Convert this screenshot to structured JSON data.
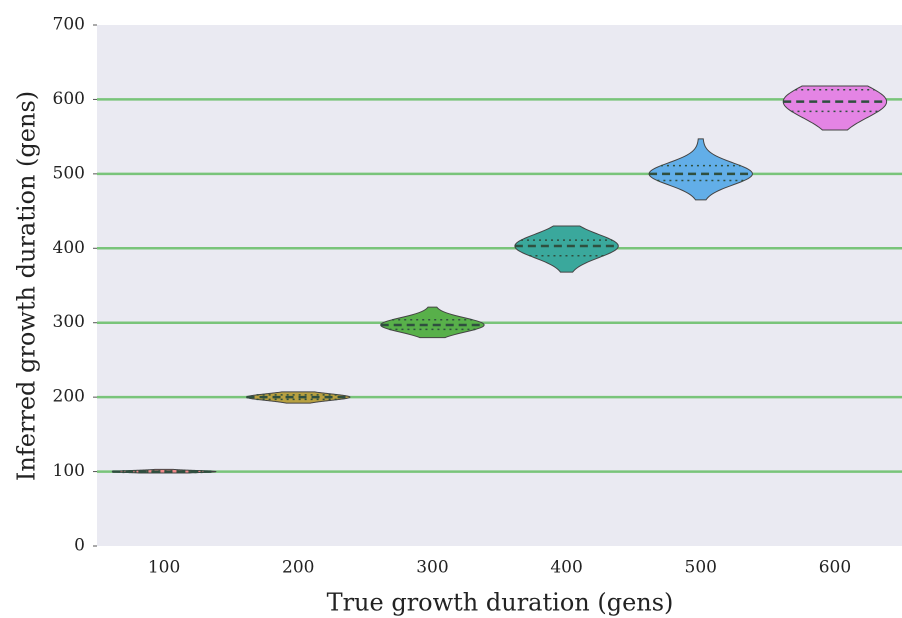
{
  "chart_data": {
    "type": "violin",
    "xlabel": "True growth duration (gens)",
    "ylabel": "Inferred growth duration (gens)",
    "categories": [
      "100",
      "200",
      "300",
      "400",
      "500",
      "600"
    ],
    "colors": [
      "#f08a8a",
      "#b8a040",
      "#58b04a",
      "#3aa89c",
      "#62aee8",
      "#e484e4"
    ],
    "stats": [
      {
        "min": 98,
        "q1": 99,
        "median": 100,
        "q3": 101,
        "max": 103
      },
      {
        "min": 192,
        "q1": 197,
        "median": 200,
        "q3": 203,
        "max": 207
      },
      {
        "min": 280,
        "q1": 291,
        "median": 297,
        "q3": 304,
        "max": 321
      },
      {
        "min": 368,
        "q1": 390,
        "median": 403,
        "q3": 411,
        "max": 430
      },
      {
        "min": 465,
        "q1": 491,
        "median": 500,
        "q3": 511,
        "max": 547
      },
      {
        "min": 559,
        "q1": 584,
        "median": 597,
        "q3": 613,
        "max": 618
      }
    ],
    "reference_lines": [
      100,
      200,
      300,
      400,
      500,
      600
    ],
    "reference_color": "#79c47a",
    "ylim": [
      0,
      700
    ],
    "yticks": [
      0,
      100,
      200,
      300,
      400,
      500,
      600,
      700
    ]
  }
}
